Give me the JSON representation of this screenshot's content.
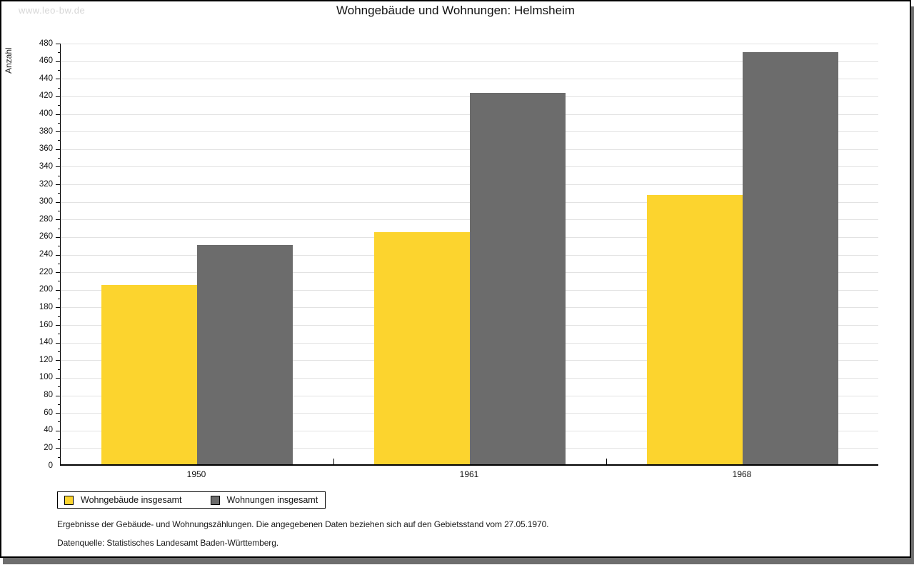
{
  "watermark": "www.leo-bw.de",
  "title": "Wohngebäude und Wohnungen: Helmsheim",
  "chart_data": {
    "type": "bar",
    "categories": [
      "1950",
      "1961",
      "1968"
    ],
    "series": [
      {
        "name": "Wohngebäude insgesamt",
        "color": "#FCD42E",
        "values": [
          204,
          264,
          306
        ]
      },
      {
        "name": "Wohnungen insgesamt",
        "color": "#6C6C6C",
        "values": [
          249,
          422,
          469
        ]
      }
    ],
    "title": "Wohngebäude und Wohnungen: Helmsheim",
    "xlabel": "",
    "ylabel": "Anzahl",
    "ylim": [
      0,
      480
    ],
    "ytick_step": 20,
    "ytick_minor_step": 10,
    "grid": true,
    "gridline_color": "#E2E2E2",
    "legend_position": "bottom-left"
  },
  "footnotes": {
    "line1": "Ergebnisse der Gebäude- und Wohnungszählungen. Die angegebenen Daten beziehen sich auf den Gebietsstand vom 27.05.1970.",
    "line2": "Datenquelle: Statistisches Landesamt Baden-Württemberg."
  }
}
